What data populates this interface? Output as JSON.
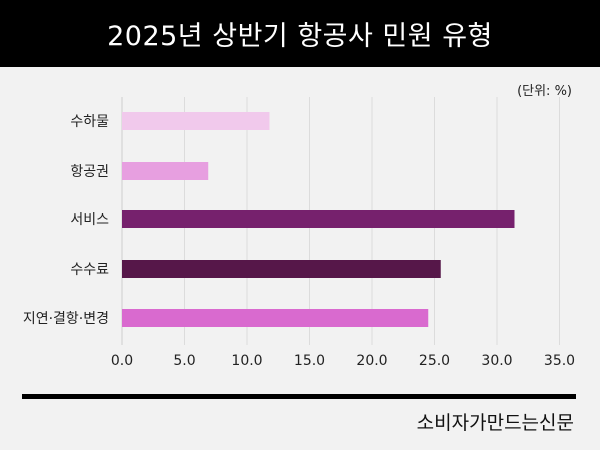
{
  "title": "2025년 상반기 항공사 민원 유형",
  "unit_label": "(단위: %)",
  "source": "소비자가만드는신문",
  "chart_data": {
    "type": "bar",
    "orientation": "horizontal",
    "title": "2025년 상반기 항공사 민원 유형",
    "xlabel": "",
    "ylabel": "",
    "unit": "%",
    "categories": [
      "수하물",
      "항공권",
      "서비스",
      "수수료",
      "지연·결항·변경"
    ],
    "values": [
      11.8,
      6.9,
      31.4,
      25.5,
      24.5
    ],
    "colors": [
      "#f1c9ec",
      "#e79fe0",
      "#76216d",
      "#561749",
      "#d96acf"
    ],
    "xlim": [
      0,
      35
    ],
    "x_ticks": [
      "0.0",
      "5.0",
      "10.0",
      "15.0",
      "20.0",
      "25.0",
      "30.0",
      "35.0"
    ],
    "grid": "vertical"
  }
}
